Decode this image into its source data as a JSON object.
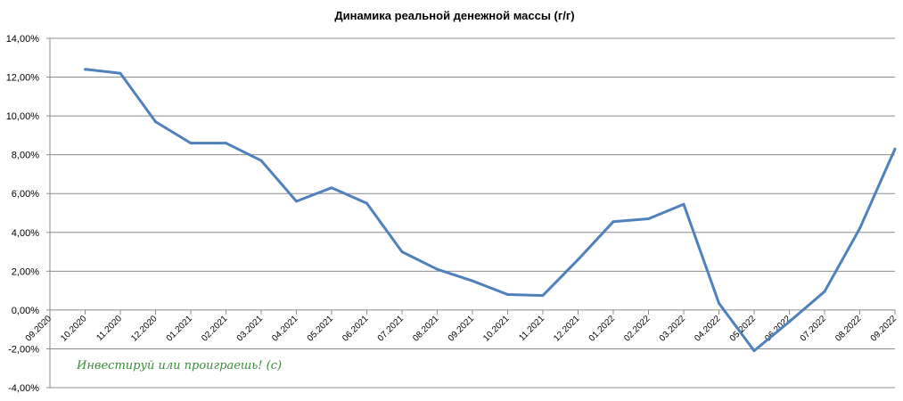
{
  "chart_data": {
    "type": "line",
    "title": "Динамика реальной денежной массы (г/г)",
    "xlabel": "",
    "ylabel": "",
    "ylim": [
      -0.04,
      0.14
    ],
    "yticks": [
      "14,00%",
      "12,00%",
      "10,00%",
      "8,00%",
      "6,00%",
      "4,00%",
      "2,00%",
      "0,00%",
      "-2,00%",
      "-4,00%"
    ],
    "ytick_values": [
      0.14,
      0.12,
      0.1,
      0.08,
      0.06,
      0.04,
      0.02,
      0.0,
      -0.02,
      -0.04
    ],
    "categories": [
      "09.2020",
      "10.2020",
      "11.2020",
      "12.2020",
      "01.2021",
      "02.2021",
      "03.2021",
      "04.2021",
      "05.2021",
      "06.2021",
      "07.2021",
      "08.2021",
      "09.2021",
      "10.2021",
      "11.2021",
      "12.2021",
      "01.2022",
      "02.2022",
      "03.2022",
      "04.2022",
      "05.2022",
      "06.2022",
      "07.2022",
      "08.2022",
      "09.2022"
    ],
    "series": [
      {
        "values": [
          null,
          0.124,
          0.122,
          0.097,
          0.086,
          0.086,
          0.077,
          0.056,
          0.063,
          0.055,
          0.03,
          0.021,
          0.015,
          0.008,
          0.0075,
          0.026,
          0.0455,
          0.047,
          0.0545,
          0.0035,
          -0.021,
          -0.006,
          0.0095,
          0.042,
          0.083
        ]
      }
    ],
    "grid": true,
    "legend": "none",
    "line_color": "#4f81bd",
    "grid_color": "#8c8c8c"
  },
  "watermark": "Инвестируй или проиграешь! (с)"
}
